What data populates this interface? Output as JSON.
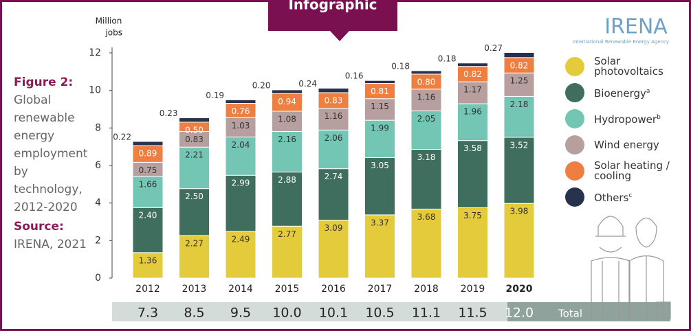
{
  "banner": "Infographic",
  "figure": {
    "label": "Figure 2:",
    "lines": [
      "Global",
      "renewable",
      "energy",
      "employment",
      "by",
      "technology,",
      "2012-2020"
    ]
  },
  "source": {
    "label": "Source:",
    "text": "IRENA, 2021"
  },
  "logo": {
    "name": "IRENA",
    "tagline": "International Renewable Energy Agency"
  },
  "chart_data": {
    "type": "stacked_bar",
    "y_label_lines": [
      "Million",
      "jobs"
    ],
    "categories": [
      "2012",
      "2013",
      "2014",
      "2015",
      "2016",
      "2017",
      "2018",
      "2019",
      "2020"
    ],
    "ylim": [
      0,
      12
    ],
    "yticks": [
      0,
      2,
      4,
      6,
      8,
      10,
      12
    ],
    "series": [
      {
        "name": "Solar photovoltaics",
        "color": "#e4cb3c",
        "values": [
          1.36,
          2.27,
          2.49,
          2.77,
          3.09,
          3.37,
          3.68,
          3.75,
          3.98
        ],
        "value_labels": [
          "1.36",
          "2.27",
          "2.49",
          "2.77",
          "3.09",
          "3.37",
          "3.68",
          "3.75",
          "3.98"
        ]
      },
      {
        "name": "Bioenergy",
        "superscript": "a",
        "color": "#3f6d5e",
        "values": [
          2.4,
          2.5,
          2.99,
          2.88,
          2.74,
          3.05,
          3.18,
          3.58,
          3.52
        ],
        "value_labels": [
          "2.40",
          "2.50",
          "2.99",
          "2.88",
          "2.74",
          "3.05",
          "3.18",
          "3.58",
          "3.52"
        ]
      },
      {
        "name": "Hydropower",
        "superscript": "b",
        "color": "#72c6b3",
        "values": [
          1.66,
          2.21,
          2.04,
          2.16,
          2.06,
          1.99,
          2.05,
          1.96,
          2.18
        ],
        "value_labels": [
          "1.66",
          "2.21",
          "2.04",
          "2.16",
          "2.06",
          "1.99",
          "2.05",
          "1.96",
          "2.18"
        ]
      },
      {
        "name": "Wind energy",
        "color": "#b69f9e",
        "values": [
          0.75,
          0.83,
          1.03,
          1.08,
          1.16,
          1.15,
          1.16,
          1.17,
          1.25
        ],
        "value_labels": [
          "0.75",
          "0.83",
          "1.03",
          "1.08",
          "1.16",
          "1.15",
          "1.16",
          "1.17",
          "1.25"
        ]
      },
      {
        "name": "Solar heating / cooling",
        "color": "#ef7e41",
        "values": [
          0.89,
          0.5,
          0.76,
          0.94,
          0.83,
          0.81,
          0.8,
          0.82,
          0.82
        ],
        "value_labels": [
          "0.89",
          "0.50",
          "0.76",
          "0.94",
          "0.83",
          "0.81",
          "0.80",
          "0.82",
          "0.82"
        ]
      },
      {
        "name": "Others",
        "superscript": "c",
        "color": "#27324d",
        "values": [
          0.22,
          0.23,
          0.19,
          0.2,
          0.24,
          0.16,
          0.18,
          0.18,
          0.27
        ],
        "value_labels": [
          "0.22",
          "0.23",
          "0.19",
          "0.20",
          "0.24",
          "0.16",
          "0.18",
          "0.18",
          "0.27"
        ]
      }
    ],
    "totals": {
      "label": "Total",
      "values": [
        7.3,
        8.5,
        9.5,
        10,
        10.1,
        10.5,
        11.1,
        11.5,
        12
      ],
      "value_labels": [
        "7.3",
        "8.5",
        "9.5",
        "10.0",
        "10.1",
        "10.5",
        "11.1",
        "11.5",
        "12.0"
      ]
    }
  }
}
